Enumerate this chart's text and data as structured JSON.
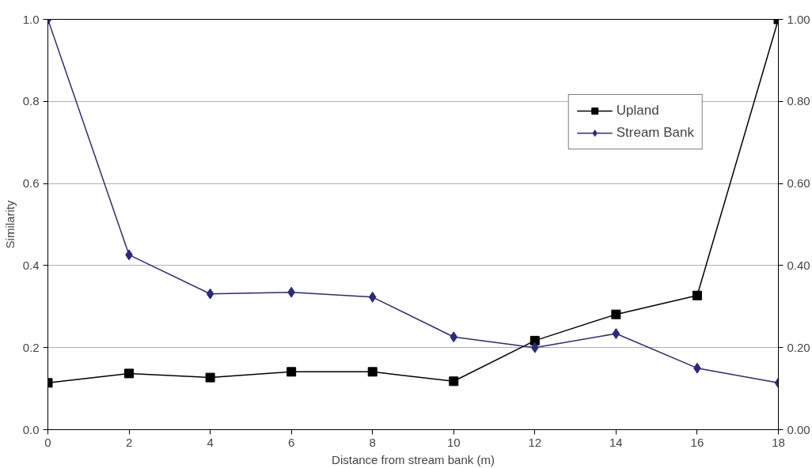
{
  "chart_data": {
    "type": "line",
    "xlabel": "Distance from stream bank (m)",
    "ylabel": "Similarity",
    "x": [
      0,
      2,
      4,
      6,
      8,
      10,
      12,
      14,
      16,
      18
    ],
    "xlim": [
      0,
      18
    ],
    "xticks": [
      0,
      2,
      4,
      6,
      8,
      10,
      12,
      14,
      16,
      18
    ],
    "ylim": [
      0,
      1
    ],
    "yticks": [
      {
        "value": 0,
        "label": "0.0"
      },
      {
        "value": 0.2,
        "label": "0.2"
      },
      {
        "value": 0.4,
        "label": "0.4"
      },
      {
        "value": 0.6,
        "label": "0.6"
      },
      {
        "value": 0.8,
        "label": "0.8"
      },
      {
        "value": 1,
        "label": "1.0"
      }
    ],
    "y2lim": [
      0,
      1
    ],
    "y2ticks": [
      {
        "value": 0,
        "label": "0.00"
      },
      {
        "value": 0.2,
        "label": "0.20"
      },
      {
        "value": 0.4,
        "label": "0.40"
      },
      {
        "value": 0.6,
        "label": "0.60"
      },
      {
        "value": 0.8,
        "label": "0.80"
      },
      {
        "value": 1,
        "label": "1.00"
      }
    ],
    "grid": "y",
    "legend": "top right",
    "line_style": "solid",
    "series": [
      {
        "name": "Upland",
        "color": "#000000",
        "marker": "square",
        "values": [
          0.114,
          0.137,
          0.127,
          0.141,
          0.141,
          0.118,
          0.217,
          0.281,
          0.327,
          1.0
        ]
      },
      {
        "name": "Stream Bank",
        "color": "#2b2b7a",
        "marker": "diamond",
        "values": [
          1.0,
          0.426,
          0.331,
          0.335,
          0.323,
          0.226,
          0.2,
          0.234,
          0.15,
          0.114
        ]
      }
    ]
  }
}
